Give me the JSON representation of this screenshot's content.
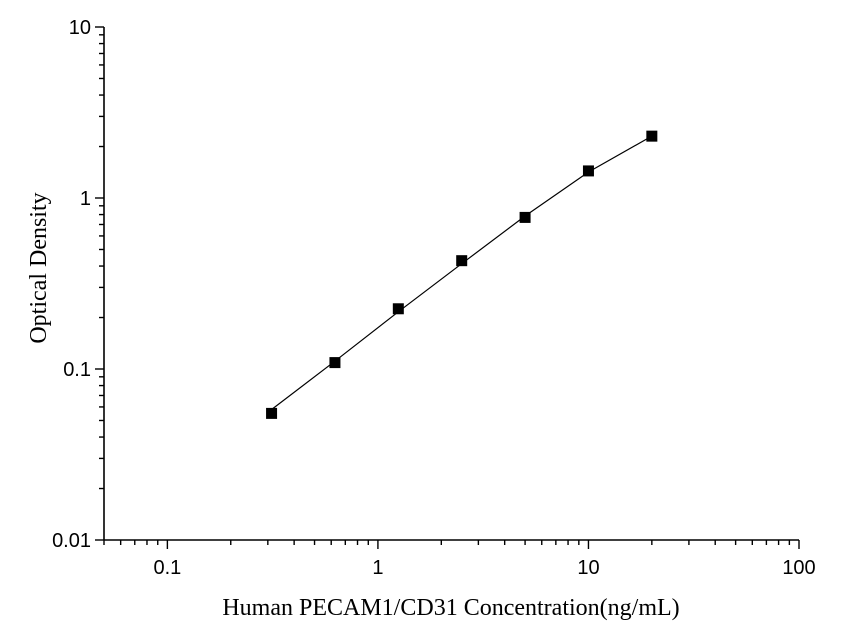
{
  "chart_data": {
    "type": "scatter",
    "title": "",
    "xlabel": "Human PECAM1/CD31 Concentration(ng/mL)",
    "ylabel": "Optical Density",
    "xscale": "log",
    "yscale": "log",
    "xlim": [
      0.05,
      100
    ],
    "ylim": [
      0.01,
      10
    ],
    "x_ticks": [
      "0.1",
      "1",
      "10",
      "100"
    ],
    "y_ticks": [
      "0.01",
      "0.1",
      "1",
      "10"
    ],
    "grid": false,
    "legend": "none",
    "series": [
      {
        "marker": "square",
        "color": "#000000",
        "x": [
          0.3125,
          0.625,
          1.25,
          2.5,
          5,
          10,
          20
        ],
        "y": [
          0.055,
          0.109,
          0.225,
          0.43,
          0.77,
          1.44,
          2.3
        ]
      }
    ],
    "fit_line": {
      "color": "#000000",
      "x": [
        0.3125,
        0.625,
        1.25,
        2.5,
        5,
        10,
        20
      ],
      "y": [
        0.058,
        0.111,
        0.216,
        0.413,
        0.785,
        1.42,
        2.3
      ]
    }
  }
}
